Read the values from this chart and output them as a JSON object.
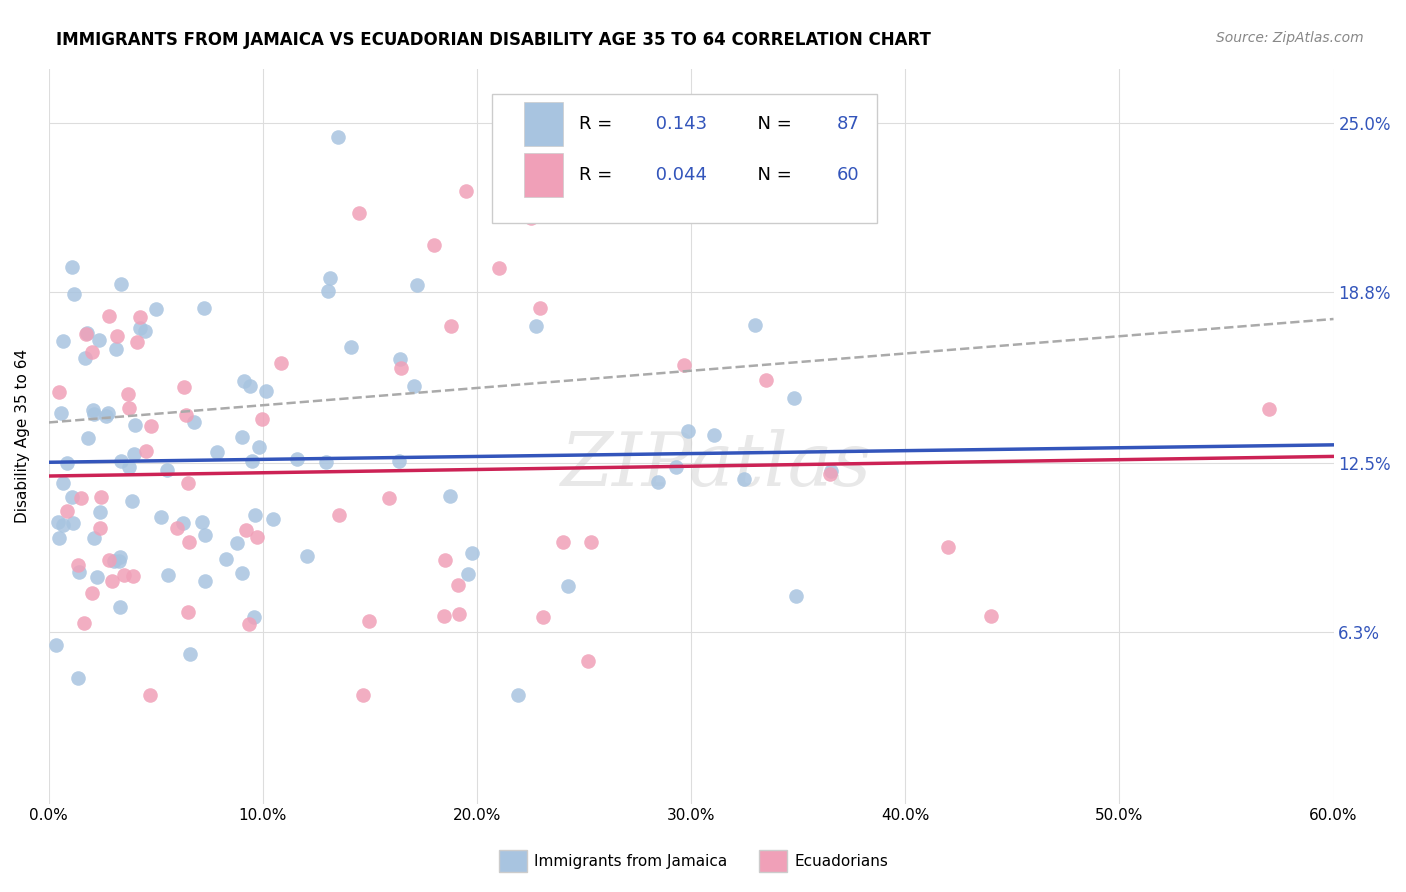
{
  "title": "IMMIGRANTS FROM JAMAICA VS ECUADORIAN DISABILITY AGE 35 TO 64 CORRELATION CHART",
  "source": "Source: ZipAtlas.com",
  "ylabel": "Disability Age 35 to 64",
  "ytick_labels": [
    "6.3%",
    "12.5%",
    "18.8%",
    "25.0%"
  ],
  "ytick_values": [
    0.063,
    0.125,
    0.188,
    0.25
  ],
  "xmin": 0.0,
  "xmax": 0.6,
  "ymin": 0.0,
  "ymax": 0.27,
  "color_blue": "#a8c4e0",
  "color_pink": "#f0a0b8",
  "line_blue": "#3355bb",
  "line_pink": "#cc2255",
  "line_dashed_color": "#aaaaaa",
  "background_color": "#ffffff",
  "grid_color": "#dddddd",
  "r1": "0.143",
  "n1": "87",
  "r2": "0.044",
  "n2": "60",
  "legend_label1": "Immigrants from Jamaica",
  "legend_label2": "Ecuadorians",
  "label_color": "#3355bb"
}
